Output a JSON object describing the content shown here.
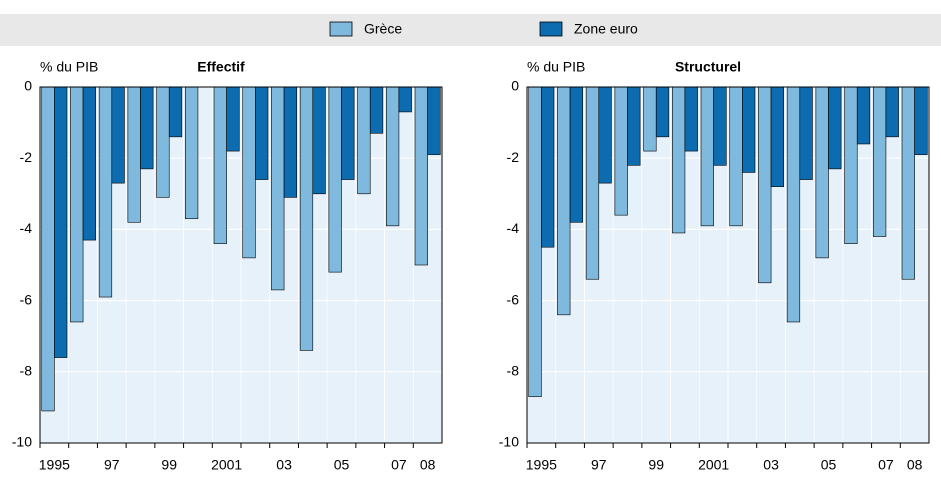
{
  "chart_data": [
    {
      "type": "bar",
      "title": "Effectif",
      "y_label": "% du PIB",
      "categories": [
        "1995",
        null,
        "97",
        null,
        "99",
        null,
        "2001",
        null,
        "03",
        null,
        "05",
        null,
        "07",
        "08"
      ],
      "series": [
        {
          "name": "Grèce",
          "color": "#7fb9de",
          "values": [
            -9.1,
            -6.6,
            -5.9,
            -3.8,
            -3.1,
            -3.7,
            -4.4,
            -4.8,
            -5.7,
            -7.4,
            -5.2,
            -3.0,
            -3.9,
            -5.0
          ]
        },
        {
          "name": "Zone euro",
          "color": "#0d6cb0",
          "values": [
            -7.6,
            -4.3,
            -2.7,
            -2.3,
            -1.4,
            0,
            -1.8,
            -2.6,
            -3.1,
            -3.0,
            -2.6,
            -1.3,
            -0.7,
            -1.9
          ]
        }
      ],
      "ylim": [
        -10,
        0
      ],
      "yticks": [
        -10,
        -8,
        -6,
        -4,
        -2,
        0
      ],
      "grid": true
    },
    {
      "type": "bar",
      "title": "Structurel",
      "y_label": "% du PIB",
      "categories": [
        "1995",
        null,
        "97",
        null,
        "99",
        null,
        "2001",
        null,
        "03",
        null,
        "05",
        null,
        "07",
        "08"
      ],
      "series": [
        {
          "color": "#7fb9de",
          "values": [
            -8.7,
            -6.4,
            -5.4,
            -3.6,
            -1.8,
            -4.1,
            -3.9,
            -3.9,
            -5.5,
            -6.6,
            -4.8,
            -4.4,
            -4.2,
            -5.4
          ]
        },
        {
          "color": "#0d6cb0",
          "values": [
            -4.5,
            -3.8,
            -2.7,
            -2.2,
            -1.4,
            -1.8,
            -2.2,
            -2.4,
            -2.8,
            -2.6,
            -2.3,
            -1.6,
            -1.4,
            -1.9
          ]
        }
      ],
      "ylim": [
        -10,
        0
      ],
      "yticks": [
        -10,
        -8,
        -6,
        -4,
        -2,
        0
      ],
      "grid": true
    }
  ]
}
